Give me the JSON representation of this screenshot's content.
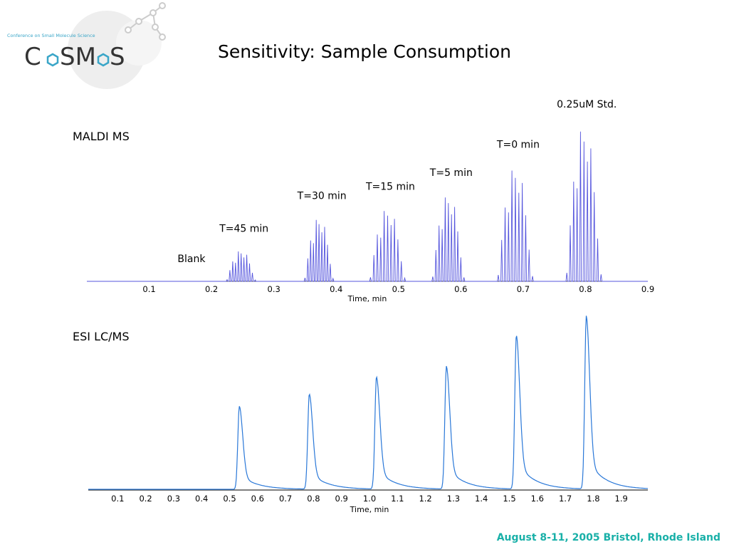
{
  "slide": {
    "title": "Sensitivity: Sample Consumption",
    "footer": "August 8-11, 2005 Bristol, Rhode Island",
    "logo": {
      "tagline": "Conference on Small Molecule Science",
      "wordmark": "COSMOS",
      "accent_color": "#3aa6c8",
      "text_color": "#333333"
    }
  },
  "chart_data": [
    {
      "type": "line",
      "subtype": "mass-spec-chromatogram",
      "title": "MALDI MS",
      "xlabel": "Time, min",
      "ylabel": "",
      "xlim": [
        0.0,
        0.9
      ],
      "xticks": [
        "0.1",
        "0.2",
        "0.3",
        "0.4",
        "0.5",
        "0.6",
        "0.7",
        "0.8",
        "0.9"
      ],
      "line_color": "#5555dd",
      "ylim": [
        0,
        1.0
      ],
      "groups": [
        {
          "label": "Blank",
          "start": 0.13,
          "end": 0.16,
          "peak": 0.0
        },
        {
          "label": "T=45 min",
          "start": 0.225,
          "end": 0.27,
          "peak": 0.2
        },
        {
          "label": "T=30 min",
          "start": 0.35,
          "end": 0.395,
          "peak": 0.41
        },
        {
          "label": "T=15 min",
          "start": 0.455,
          "end": 0.51,
          "peak": 0.47
        },
        {
          "label": "T=5 min",
          "start": 0.555,
          "end": 0.605,
          "peak": 0.56
        },
        {
          "label": "T=0 min",
          "start": 0.66,
          "end": 0.715,
          "peak": 0.74
        },
        {
          "label": "0.25uM Std.",
          "start": 0.77,
          "end": 0.825,
          "peak": 1.0
        }
      ]
    },
    {
      "type": "line",
      "subtype": "chromatogram",
      "title": "ESI LC/MS",
      "xlabel": "Time, min",
      "ylabel": "",
      "xlim": [
        0.0,
        2.0
      ],
      "xticks": [
        "0.1",
        "0.2",
        "0.3",
        "0.4",
        "0.5",
        "0.6",
        "0.7",
        "0.8",
        "0.9",
        "1.0",
        "1.1",
        "1.2",
        "1.3",
        "1.4",
        "1.5",
        "1.6",
        "1.7",
        "1.8",
        "1.9"
      ],
      "line_color": "#2a78d8",
      "ylim": [
        0,
        1.0
      ],
      "peaks": [
        {
          "x": 0.54,
          "height": 0.48
        },
        {
          "x": 0.79,
          "height": 0.55
        },
        {
          "x": 1.03,
          "height": 0.65
        },
        {
          "x": 1.28,
          "height": 0.71
        },
        {
          "x": 1.53,
          "height": 0.89
        },
        {
          "x": 1.78,
          "height": 1.0
        }
      ]
    }
  ]
}
